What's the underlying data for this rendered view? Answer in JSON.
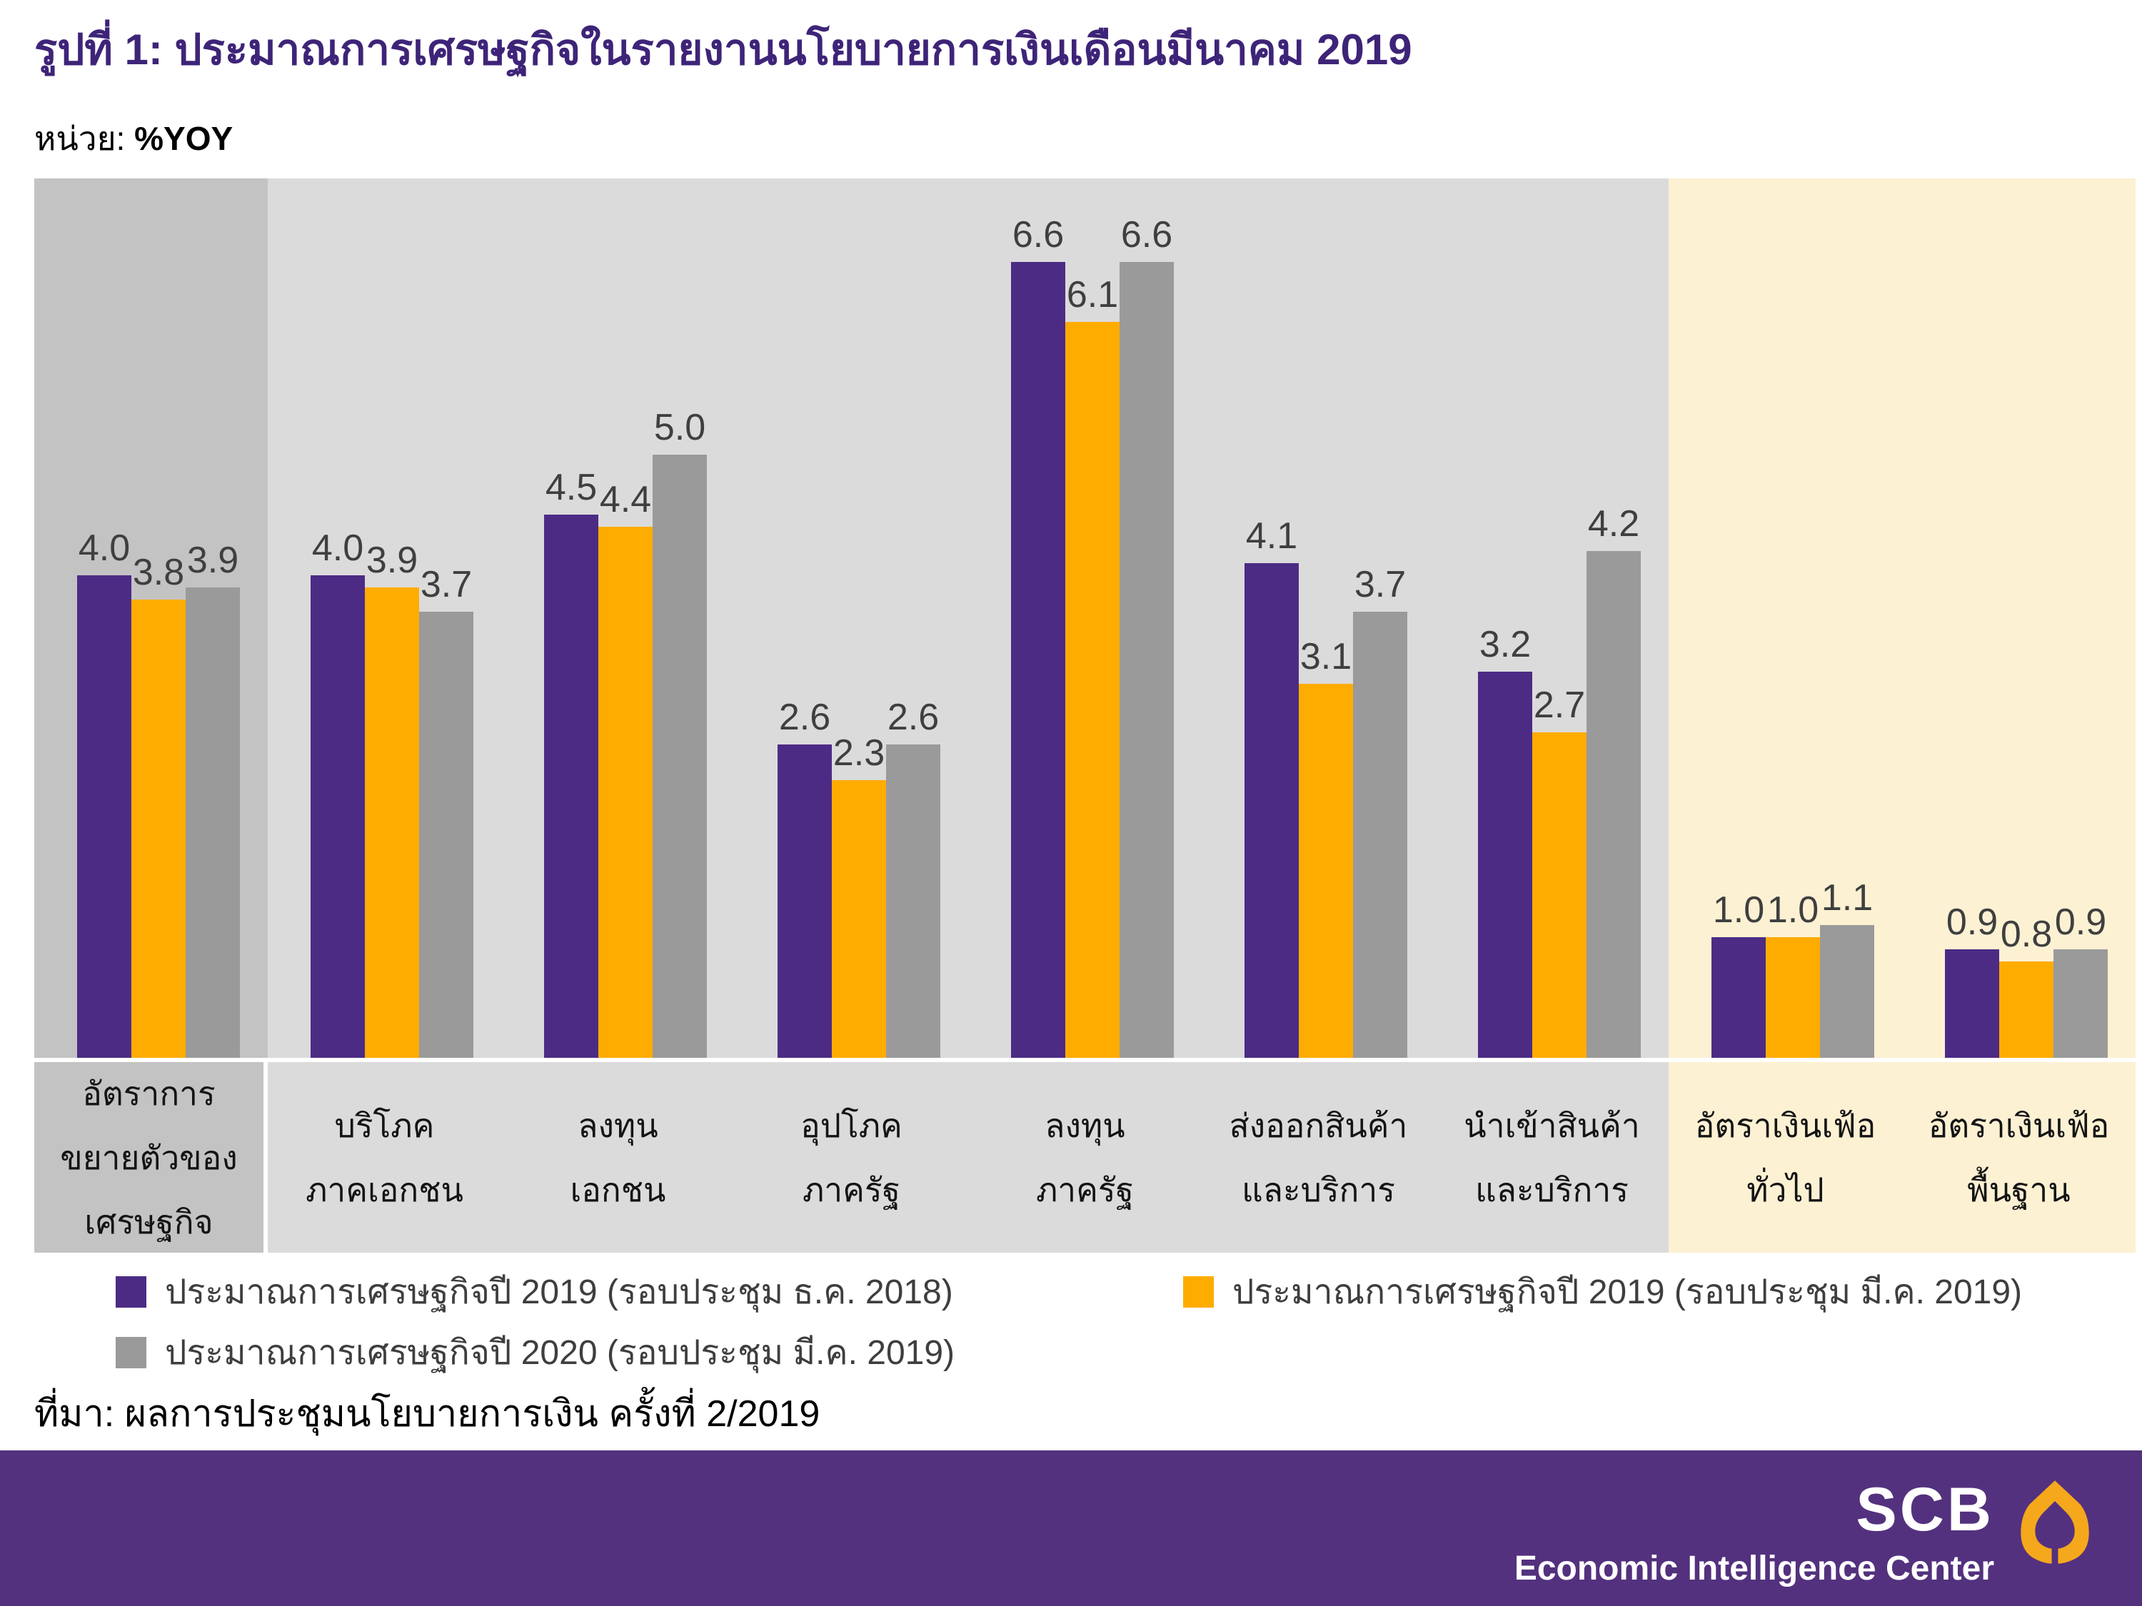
{
  "title": "รูปที่ 1: ประมาณการเศรษฐกิจในรายงานนโยบายการเงินเดือนมีนาคม 2019",
  "unit": {
    "prefix": "หน่วย: ",
    "value": "%YOY"
  },
  "source": "ที่มา: ผลการประชุมนโยบายการเงิน ครั้งที่ 2/2019",
  "colors": {
    "title": "#3E2478",
    "series_2019_dec": "#4C2B85",
    "series_2019_mar": "#FFAC00",
    "series_2020_mar": "#9A9A9A",
    "panel_dark": "#C3C3C3",
    "panel_light": "#DBDBDB",
    "panel_cream": "#FDF1D3",
    "footer_bg": "#53317E",
    "value_label": "#3F3F3F"
  },
  "legend": [
    {
      "label": "ประมาณการเศรษฐกิจปี 2019 (รอบประชุม ธ.ค. 2018)",
      "swatch": "series_2019_dec"
    },
    {
      "label": "ประมาณการเศรษฐกิจปี 2019 (รอบประชุม มี.ค. 2019)",
      "swatch": "series_2019_mar"
    },
    {
      "label": "ประมาณการเศรษฐกิจปี 2020 (รอบประชุม มี.ค. 2019)",
      "swatch": "series_2020_mar"
    }
  ],
  "chart_data": {
    "type": "bar",
    "title": "ประมาณการเศรษฐกิจในรายงานนโยบายการเงินเดือนมีนาคม 2019",
    "ylabel": "%YOY",
    "ylim": [
      0,
      7.3
    ],
    "grid": false,
    "legend_position": "bottom",
    "categories": [
      {
        "label": "อัตราการขยายตัวของเศรษฐกิจ",
        "lines": [
          "อัตราการ",
          "ขยายตัวของ",
          "เศรษฐกิจ"
        ],
        "panel": "panel_dark"
      },
      {
        "label": "บริโภคภาคเอกชน",
        "lines": [
          "บริโภค",
          "ภาคเอกชน"
        ],
        "panel": "panel_light"
      },
      {
        "label": "ลงทุนเอกชน",
        "lines": [
          "ลงทุน",
          "เอกชน"
        ],
        "panel": "panel_light"
      },
      {
        "label": "อุปโภคภาครัฐ",
        "lines": [
          "อุปโภค",
          "ภาครัฐ"
        ],
        "panel": "panel_light"
      },
      {
        "label": "ลงทุนภาครัฐ",
        "lines": [
          "ลงทุน",
          "ภาครัฐ"
        ],
        "panel": "panel_light"
      },
      {
        "label": "ส่งออกสินค้าและบริการ",
        "lines": [
          "ส่งออกสินค้า",
          "และบริการ"
        ],
        "panel": "panel_light"
      },
      {
        "label": "นำเข้าสินค้าและบริการ",
        "lines": [
          "นำเข้าสินค้า",
          "และบริการ"
        ],
        "panel": "panel_light"
      },
      {
        "label": "อัตราเงินเฟ้อทั่วไป",
        "lines": [
          "อัตราเงินเฟ้อ",
          "ทั่วไป"
        ],
        "panel": "panel_cream"
      },
      {
        "label": "อัตราเงินเฟ้อพื้นฐาน",
        "lines": [
          "อัตราเงินเฟ้อ",
          "พื้นฐาน"
        ],
        "panel": "panel_cream"
      }
    ],
    "series": [
      {
        "name": "ประมาณการเศรษฐกิจปี 2019 (รอบประชุม ธ.ค. 2018)",
        "color_key": "series_2019_dec",
        "values": [
          4.0,
          4.0,
          4.5,
          2.6,
          6.6,
          4.1,
          3.2,
          1.0,
          0.9
        ]
      },
      {
        "name": "ประมาณการเศรษฐกิจปี 2019 (รอบประชุม มี.ค. 2019)",
        "color_key": "series_2019_mar",
        "values": [
          3.8,
          3.9,
          4.4,
          2.3,
          6.1,
          3.1,
          2.7,
          1.0,
          0.8
        ]
      },
      {
        "name": "ประมาณการเศรษฐกิจปี 2020 (รอบประชุม มี.ค. 2019)",
        "color_key": "series_2020_mar",
        "values": [
          3.9,
          3.7,
          5.0,
          2.6,
          6.6,
          3.7,
          4.2,
          1.1,
          0.9
        ]
      }
    ]
  },
  "footer": {
    "brand": "SCB",
    "subtitle": "Economic Intelligence Center"
  }
}
